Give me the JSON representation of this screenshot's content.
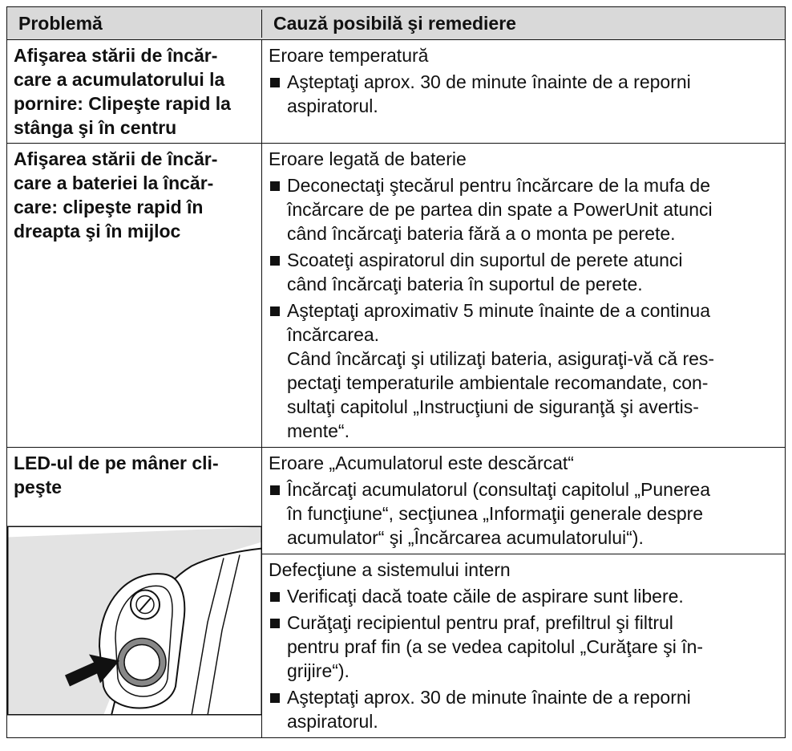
{
  "table": {
    "header": [
      "Problemă",
      "Cauză posibilă şi remediere"
    ],
    "rows": [
      {
        "problem": [
          "Afişarea stării de încăr-",
          "care a acumulatorului la",
          "pornire: Clipeşte rapid la",
          "stânga şi în centru"
        ],
        "causes": [
          {
            "title": "Eroare temperatură",
            "steps": [
              [
                "Aşteptaţi aprox. 30 de minute înainte de a reporni",
                "aspiratorul."
              ]
            ]
          }
        ]
      },
      {
        "problem": [
          "Afişarea stării de încăr-",
          "care a bateriei la încăr-",
          "care: clipeşte rapid în",
          "dreapta şi în mijloc"
        ],
        "causes": [
          {
            "title": "Eroare legată de baterie",
            "steps": [
              [
                "Deconectaţi ştecărul pentru încărcare de la mufa de",
                "încărcare de pe partea din spate a PowerUnit atunci",
                "când încărcaţi bateria fără a o monta pe perete."
              ],
              [
                "Scoateţi aspiratorul din suportul de perete atunci",
                "când încărcaţi bateria în suportul de perete."
              ],
              [
                "Aşteptaţi aproximativ 5 minute înainte de a continua",
                "încărcarea."
              ]
            ],
            "note": [
              "Când încărcaţi şi utilizaţi bateria, asiguraţi-vă că res-",
              "pectaţi temperaturile ambientale recomandate, con-",
              "sultaţi capitolul „Instrucţiuni de siguranţă şi avertis-",
              "mente“."
            ]
          }
        ]
      },
      {
        "problem": [
          "LED-ul de pe mâner cli-",
          "peşte"
        ],
        "causes": [
          {
            "title": "Eroare „Acumulatorul este descărcat“",
            "steps": [
              [
                "Încărcaţi acumulatorul (consultaţi capitolul „Punerea",
                "în funcţiune“, secţiunea „Informaţii generale despre",
                "acumulator“ şi „Încărcarea acumulatorului“)."
              ]
            ]
          },
          {
            "title": "Defecţiune a sistemului intern",
            "steps": [
              [
                "Verificaţi dacă toate căile de aspirare sunt libere."
              ],
              [
                "Curăţaţi recipientul pentru praf, prefiltrul şi filtrul",
                "pentru praf fin (a se vedea capitolul „Curăţare şi în-",
                "grijire“)."
              ],
              [
                "Aşteptaţi aprox. 30 de minute înainte de a reporni",
                "aspiratorul."
              ]
            ]
          }
        ]
      }
    ]
  }
}
